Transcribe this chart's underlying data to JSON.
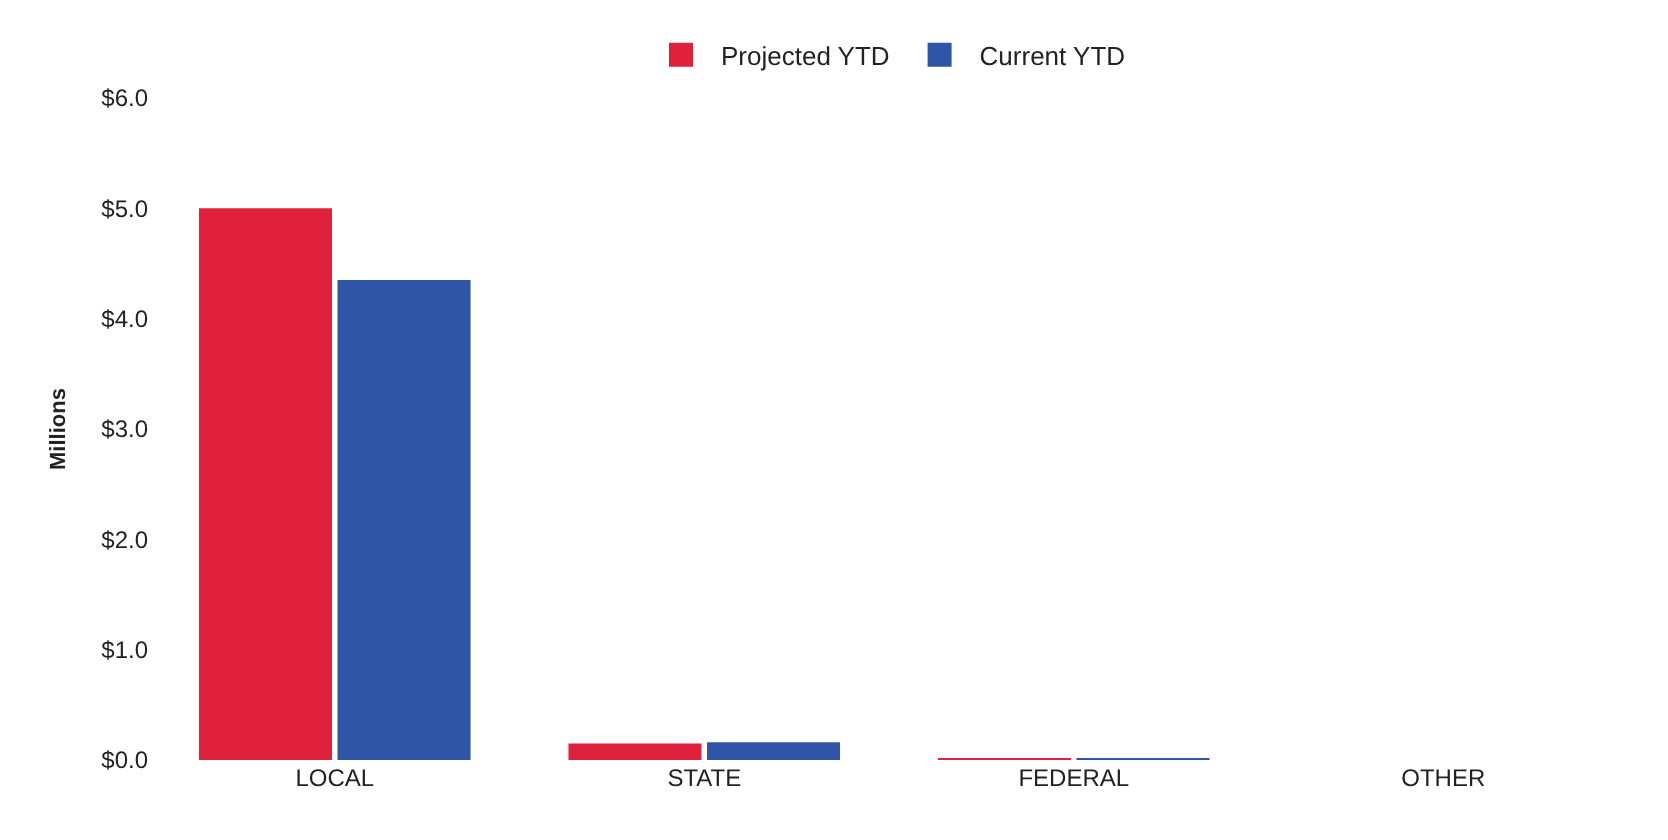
{
  "chart_data": {
    "type": "bar",
    "ylabel": "Millions",
    "categories": [
      "LOCAL",
      "STATE",
      "FEDERAL",
      "OTHER"
    ],
    "series": [
      {
        "name": "Projected YTD",
        "color": "#e0213b",
        "values": [
          5.0,
          0.15,
          0.01,
          0
        ]
      },
      {
        "name": "Current YTD",
        "color": "#2f56a6",
        "values": [
          4.35,
          0.16,
          0.01,
          0
        ]
      }
    ],
    "ylim": [
      0,
      6
    ],
    "yticks": [
      {
        "value": 0,
        "label": "$0.0"
      },
      {
        "value": 1,
        "label": "$1.0"
      },
      {
        "value": 2,
        "label": "$2.0"
      },
      {
        "value": 3,
        "label": "$3.0"
      },
      {
        "value": 4,
        "label": "$4.0"
      },
      {
        "value": 5,
        "label": "$5.0"
      },
      {
        "value": 6,
        "label": "$6.0"
      }
    ],
    "legend": "top"
  }
}
